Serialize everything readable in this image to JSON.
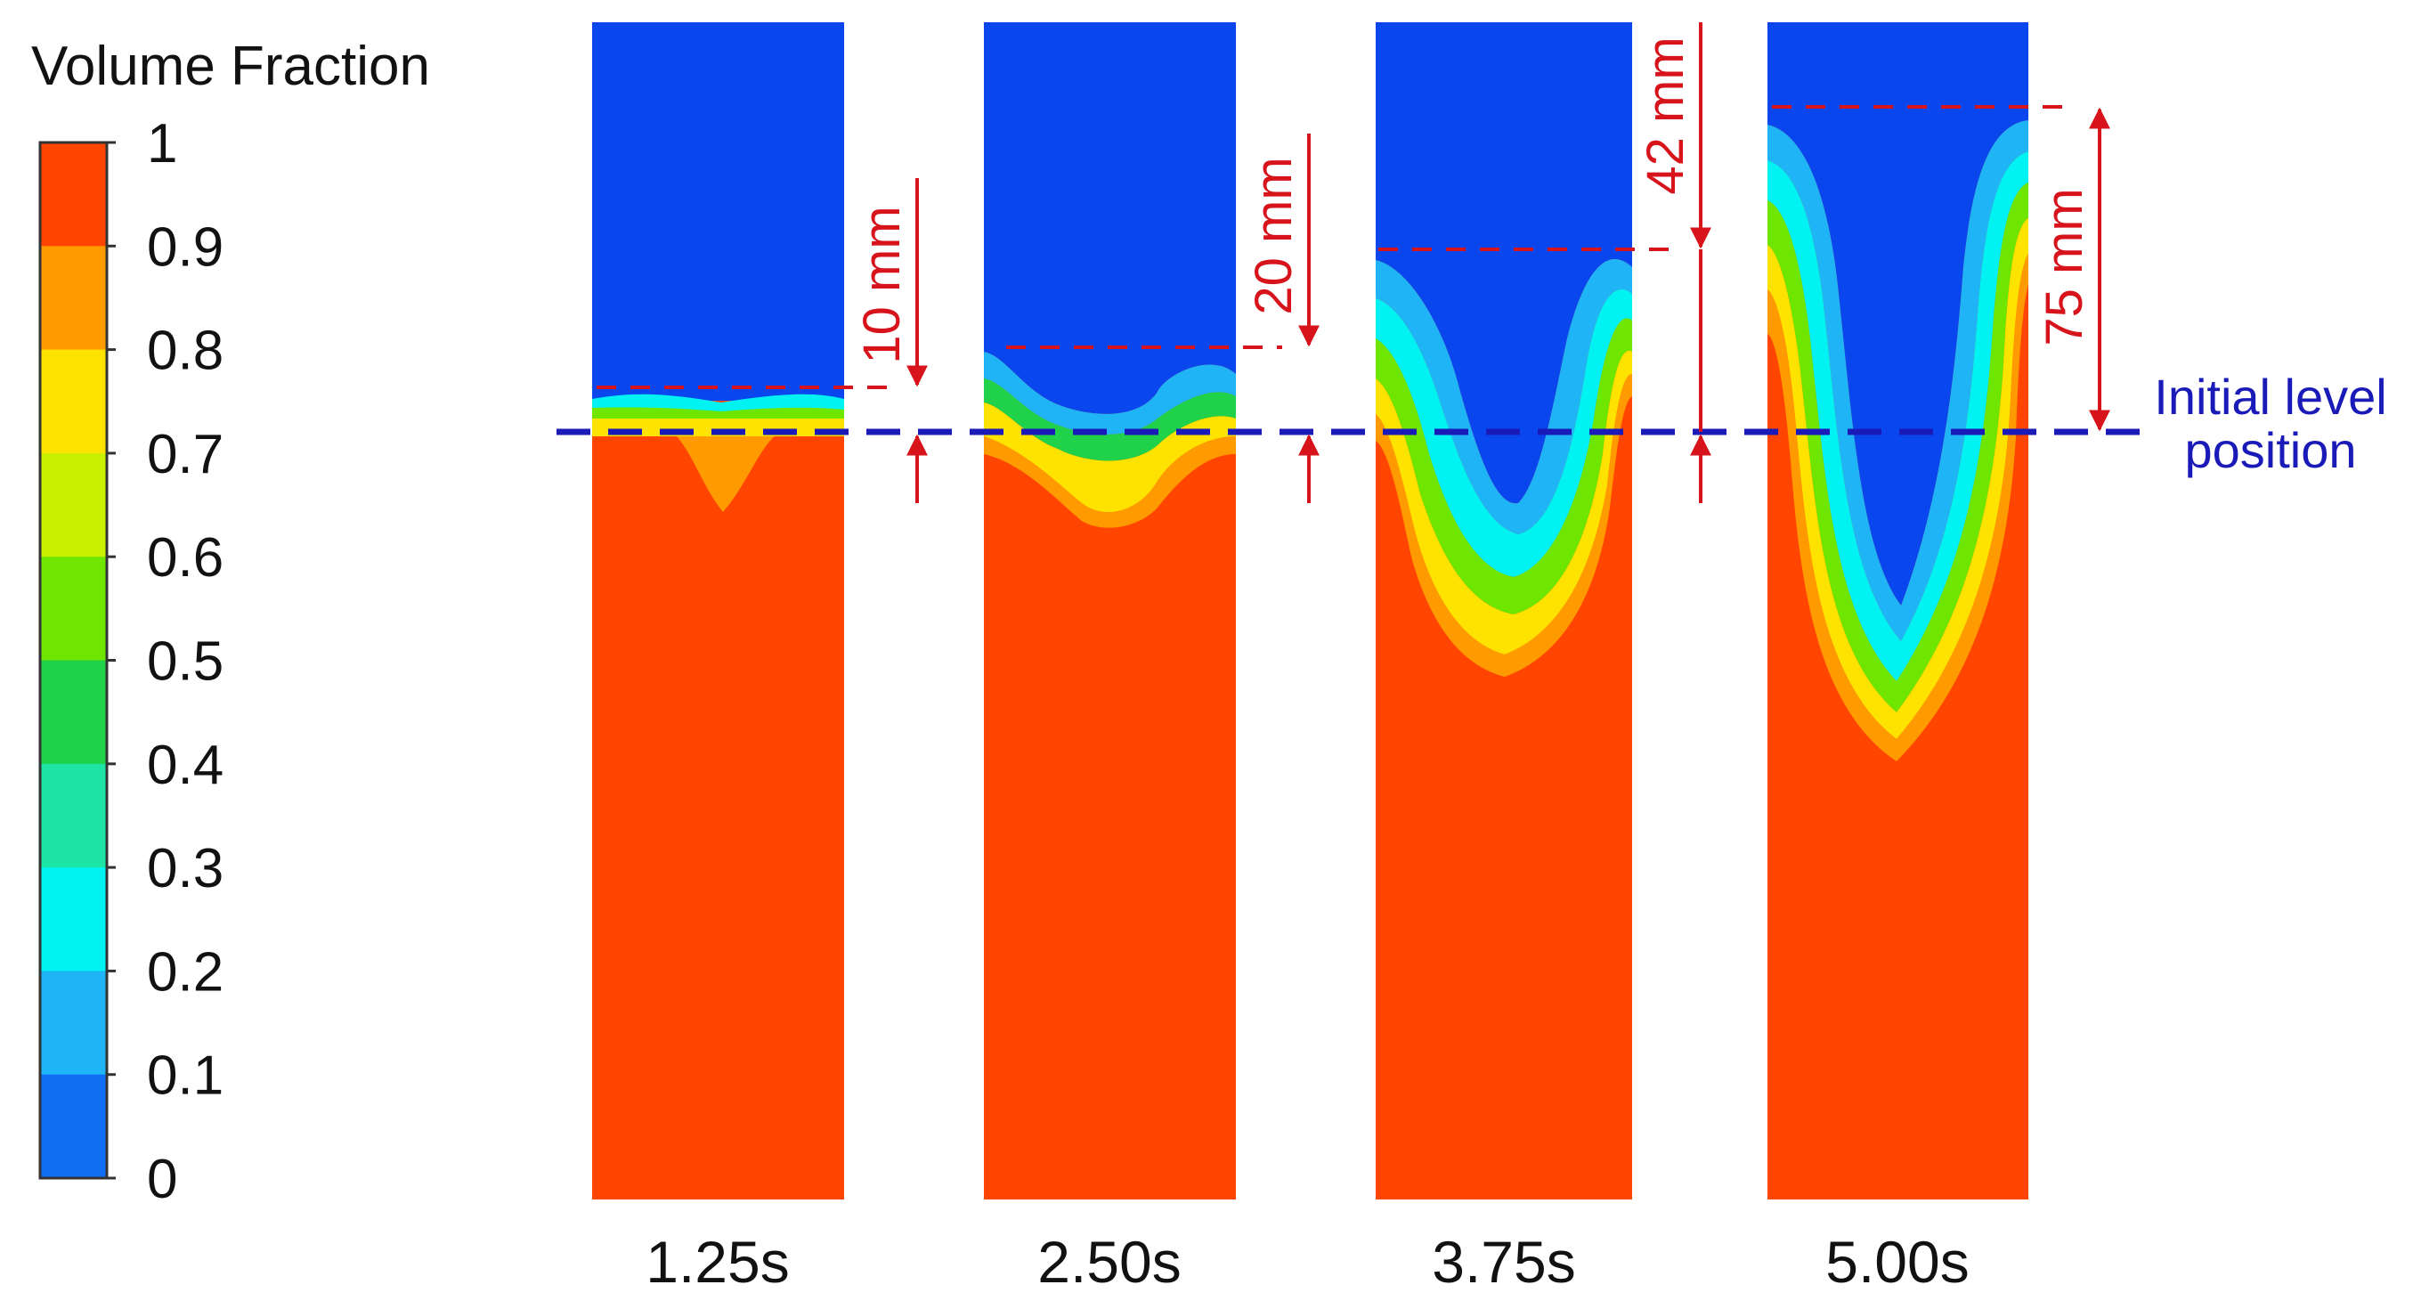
{
  "legend": {
    "title": "Volume Fraction",
    "ticks": [
      "1",
      "0.9",
      "0.8",
      "0.7",
      "0.6",
      "0.5",
      "0.4",
      "0.3",
      "0.2",
      "0.1",
      "0"
    ],
    "colors": [
      "#ff4500",
      "#ff9a00",
      "#ffe300",
      "#c9f000",
      "#6ee600",
      "#1fd24a",
      "#1de4a4",
      "#00f2f2",
      "#1eb4f6",
      "#0f6ef4"
    ]
  },
  "panels": [
    {
      "time": "1.25s",
      "rise_mm": 10,
      "rise_label": "10 mm"
    },
    {
      "time": "2.50s",
      "rise_mm": 20,
      "rise_label": "20 mm"
    },
    {
      "time": "3.75s",
      "rise_mm": 42,
      "rise_label": "42 mm"
    },
    {
      "time": "5.00s",
      "rise_mm": 75,
      "rise_label": "75 mm"
    }
  ],
  "initial_level": {
    "line1": "Initial level",
    "line2": "position"
  },
  "colors": {
    "liquid": "#ff4500",
    "gas": "#0a46ee",
    "dimension": "#d7141c",
    "level_line": "#1a1ab8"
  }
}
